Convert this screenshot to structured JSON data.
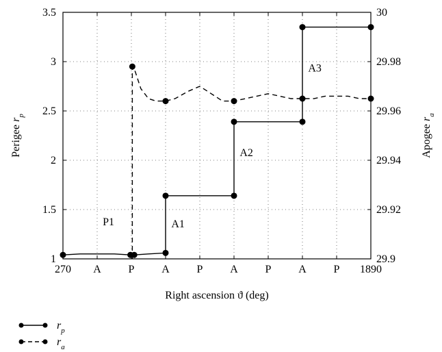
{
  "chart_data": {
    "type": "line",
    "xlabel": "Right ascension ϑ (deg)",
    "ylabel_left": {
      "main": "Perigee ",
      "symbol": "r",
      "sub": "p"
    },
    "ylabel_right": {
      "main": "Apogee ",
      "symbol": "r",
      "sub": "a"
    },
    "xlim": [
      270,
      1890
    ],
    "x_ticks": [
      270,
      450,
      630,
      810,
      990,
      1170,
      1350,
      1530,
      1710,
      1890
    ],
    "x_tick_labels": [
      "270",
      "A",
      "P",
      "A",
      "P",
      "A",
      "P",
      "A",
      "P",
      "1890"
    ],
    "ylim_left": [
      1,
      3.5
    ],
    "y_ticks_left": [
      "1",
      "1.5",
      "2",
      "2.5",
      "3",
      "3.5"
    ],
    "ylim_right": [
      29.9,
      30
    ],
    "y_ticks_right": [
      "29.9",
      "29.92",
      "29.94",
      "29.96",
      "29.98",
      "30"
    ],
    "grid": true,
    "legend_position": "bottom-left",
    "series": [
      {
        "name": "r_p",
        "legend": {
          "symbol": "r",
          "sub": "p"
        },
        "axis": "left",
        "style": "solid",
        "points": [
          [
            270,
            1.04
          ],
          [
            360,
            1.05
          ],
          [
            450,
            1.05
          ],
          [
            540,
            1.05
          ],
          [
            625,
            1.04
          ],
          [
            645,
            1.04
          ],
          [
            720,
            1.05
          ],
          [
            810,
            1.06
          ],
          [
            810,
            1.64
          ],
          [
            1170,
            1.64
          ],
          [
            1170,
            2.39
          ],
          [
            1530,
            2.39
          ],
          [
            1530,
            3.35
          ],
          [
            1890,
            3.35
          ]
        ],
        "markers": [
          [
            270,
            1.04
          ],
          [
            625,
            1.04
          ],
          [
            645,
            1.04
          ],
          [
            810,
            1.06
          ],
          [
            810,
            1.64
          ],
          [
            1170,
            1.64
          ],
          [
            1170,
            2.39
          ],
          [
            1530,
            2.39
          ],
          [
            1530,
            3.35
          ],
          [
            1890,
            3.35
          ]
        ]
      },
      {
        "name": "r_a",
        "legend": {
          "symbol": "r",
          "sub": "a"
        },
        "axis": "right",
        "style": "dashed",
        "points": [
          [
            635,
            29.9
          ],
          [
            635,
            29.978
          ],
          [
            650,
            29.976
          ],
          [
            680,
            29.969
          ],
          [
            720,
            29.965
          ],
          [
            760,
            29.964
          ],
          [
            810,
            29.964
          ],
          [
            860,
            29.965
          ],
          [
            930,
            29.968
          ],
          [
            990,
            29.97
          ],
          [
            1050,
            29.967
          ],
          [
            1110,
            29.964
          ],
          [
            1170,
            29.964
          ],
          [
            1230,
            29.965
          ],
          [
            1290,
            29.966
          ],
          [
            1350,
            29.967
          ],
          [
            1410,
            29.966
          ],
          [
            1470,
            29.965
          ],
          [
            1530,
            29.965
          ],
          [
            1590,
            29.965
          ],
          [
            1650,
            29.966
          ],
          [
            1710,
            29.966
          ],
          [
            1770,
            29.966
          ],
          [
            1830,
            29.965
          ],
          [
            1890,
            29.965
          ]
        ],
        "markers": [
          [
            635,
            29.978
          ],
          [
            810,
            29.964
          ],
          [
            1170,
            29.964
          ],
          [
            1530,
            29.965
          ],
          [
            1890,
            29.965
          ]
        ]
      }
    ],
    "annotations": [
      {
        "text": "P1",
        "x": 540,
        "y": 1.34,
        "axis": "left"
      },
      {
        "text": "A1",
        "x": 840,
        "y": 1.32,
        "axis": "left"
      },
      {
        "text": "A2",
        "x": 1200,
        "y": 2.04,
        "axis": "left"
      },
      {
        "text": "A3",
        "x": 1560,
        "y": 2.9,
        "axis": "left"
      }
    ]
  }
}
